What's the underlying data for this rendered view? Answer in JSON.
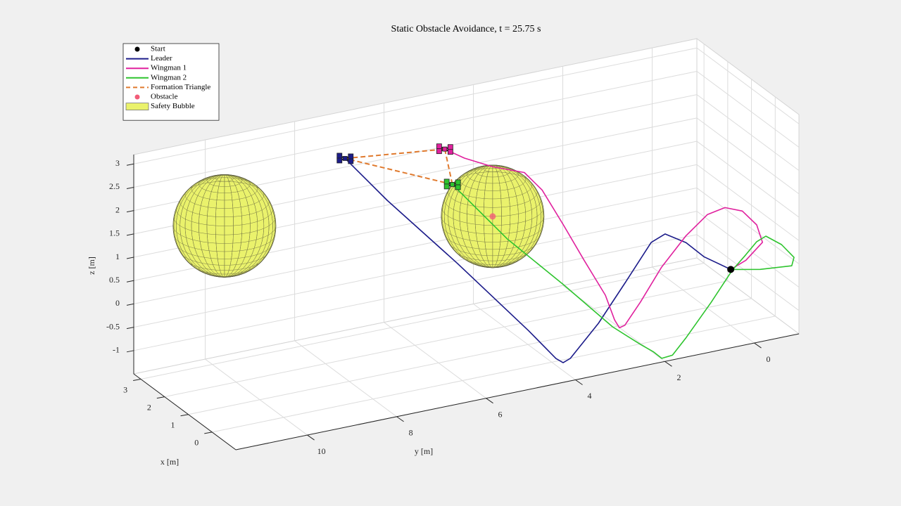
{
  "chart_data": {
    "type": "line3d",
    "title": "Static Obstacle Avoidance, t = 25.75 s",
    "xlabel": "x [m]",
    "ylabel": "y [m]",
    "zlabel": "z [m]",
    "xlim": [
      -1,
      3.3
    ],
    "ylim": [
      -1,
      11.6
    ],
    "zlim": [
      -1.5,
      3.2
    ],
    "xticks": [
      0,
      1,
      2,
      3
    ],
    "yticks": [
      0,
      2,
      4,
      6,
      8,
      10
    ],
    "zticks": [
      -1,
      -0.5,
      0,
      0.5,
      1,
      1.5,
      2,
      2.5,
      3
    ],
    "grid": true,
    "legend_loc": "northwest",
    "start": {
      "name": "Start",
      "color": "#000000",
      "x": -0.5,
      "y": 0.26,
      "z": -0.06
    },
    "series": [
      {
        "name": "Leader",
        "color": "#1c1c8a",
        "x": [
          -0.5,
          -0.5,
          -0.5,
          -0.5,
          -0.5,
          -0.5,
          -0.5,
          -0.5,
          -0.5,
          -0.5,
          0,
          1,
          2,
          3
        ],
        "y": [
          0.26,
          0.86,
          1.26,
          1.73,
          2.04,
          2.6,
          3.22,
          3.85,
          4.01,
          4.17,
          4.52,
          5.58,
          6.62,
          7.03
        ],
        "z": [
          -0.06,
          0.33,
          0.71,
          0.99,
          0.87,
          0.15,
          -0.63,
          -1.26,
          -1.32,
          -1.2,
          -0.72,
          0.55,
          1.73,
          2.33
        ]
      },
      {
        "name": "Wingman 1",
        "color": "#e0219e",
        "x": [
          -0.5,
          -0.5,
          -0.5,
          -0.5,
          -0.5,
          -0.5,
          -0.5,
          -0.5,
          -0.5,
          -0.5,
          -0.5,
          -0.5,
          -0.5,
          0,
          0.5,
          1,
          1.5,
          2,
          2.5,
          3,
          3
        ],
        "y": [
          0.26,
          -0.08,
          -0.45,
          -0.32,
          0,
          0.39,
          0.78,
          1.26,
          1.81,
          2.28,
          2.63,
          2.75,
          2.86,
          2.8,
          3.01,
          3.21,
          3.42,
          3.55,
          3.99,
          4.36,
          4.8
        ],
        "z": [
          -0.06,
          0.07,
          0.38,
          0.78,
          1.14,
          1.29,
          1.22,
          0.86,
          0.29,
          -0.36,
          -0.79,
          -0.82,
          -0.63,
          -0.3,
          0.3,
          0.91,
          1.51,
          1.72,
          1.74,
          1.81,
          2.09
        ]
      },
      {
        "name": "Wingman 2",
        "color": "#2ec42e",
        "x": [
          -0.5,
          -0.5,
          -1,
          -1,
          -1,
          -1,
          -0.5,
          -0.5,
          -0.5,
          -0.5,
          -1,
          -1,
          -1,
          -1,
          -0.5,
          0,
          1,
          2,
          3
        ],
        "y": [
          0.26,
          -0.4,
          -0.84,
          -0.89,
          -0.61,
          -0.26,
          -0.32,
          -0.08,
          0.23,
          0.7,
          1.52,
          1.83,
          2.07,
          2.26,
          2.28,
          2.64,
          3.21,
          3.93,
          4.63
        ],
        "z": [
          -0.06,
          -0.19,
          -0.01,
          0.16,
          0.49,
          0.74,
          0.42,
          0.19,
          -0.09,
          -0.68,
          -1.08,
          -1.4,
          -1.42,
          -1.24,
          -1.27,
          -1.01,
          -0.37,
          0.37,
          1.3
        ]
      }
    ],
    "formation": {
      "name": "Formation Triangle",
      "color": "#e07a2e"
    },
    "obstacles": {
      "name": "Obstacle",
      "color": "#f25c78",
      "x": [
        2
      ],
      "y": [
        4.26
      ],
      "z": [
        0.92
      ]
    },
    "bubbles": {
      "name": "Safety Bubble",
      "color": "#eaf26c",
      "radius": 1.1,
      "x": [
        2,
        2
      ],
      "y": [
        4.26,
        10.26
      ],
      "z": [
        0.92,
        1.9
      ]
    }
  }
}
